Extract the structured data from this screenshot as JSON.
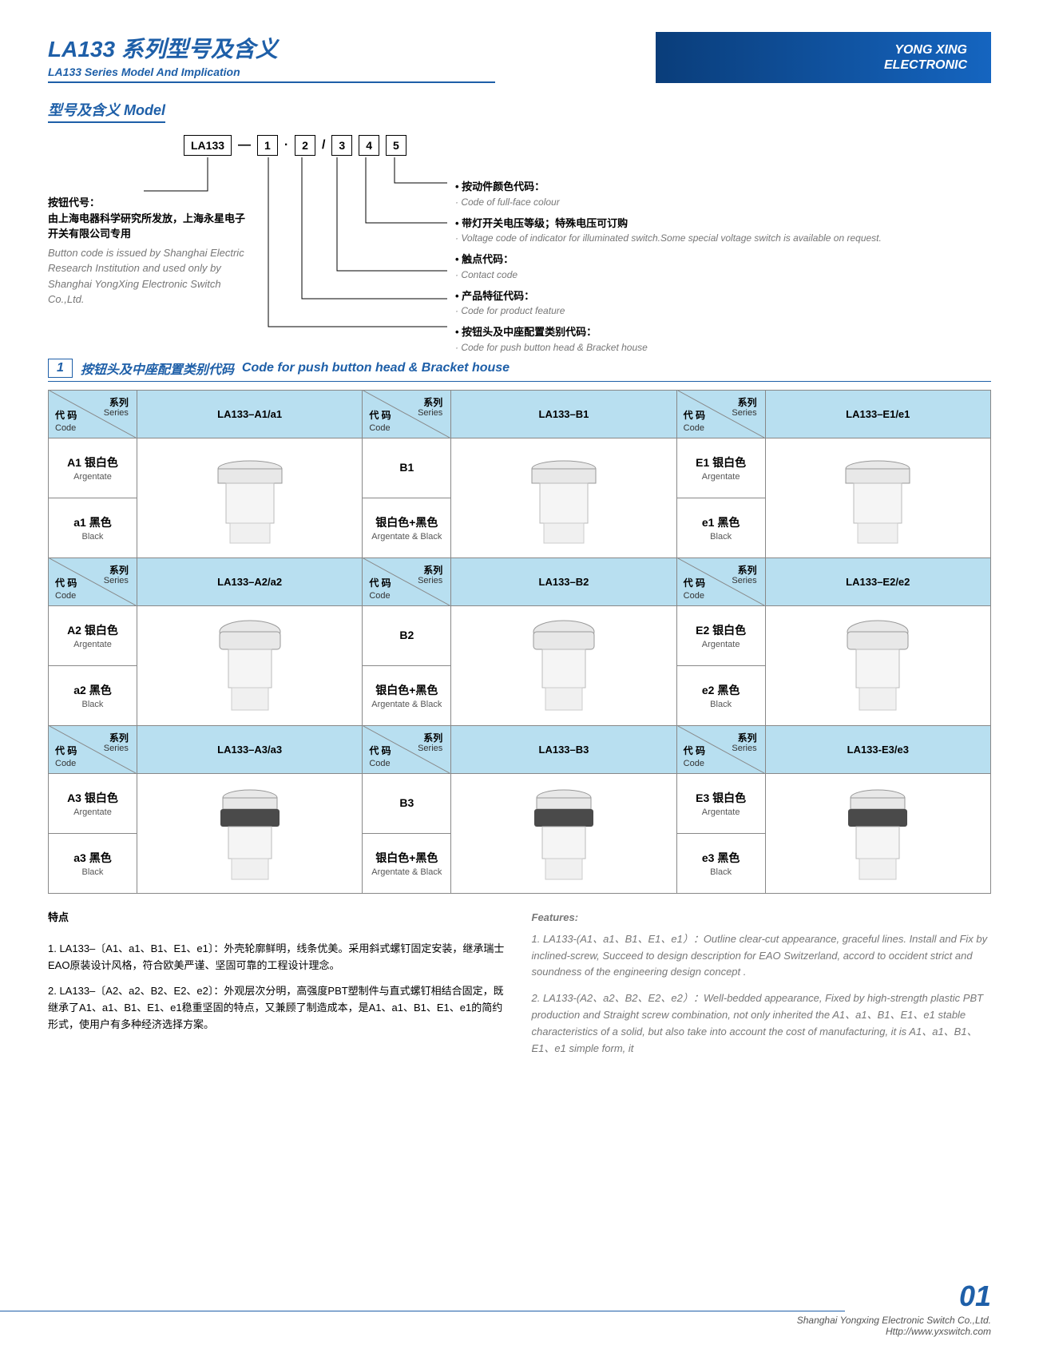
{
  "header": {
    "title_cn": "LA133 系列型号及含义",
    "title_en": "LA133 Series Model And Implication",
    "brand1": "YONG XING",
    "brand2": "ELECTRONIC"
  },
  "model": {
    "section_title": "型号及含义 Model",
    "base_code": "LA133",
    "pos1": "1",
    "pos2": "2",
    "pos3": "3",
    "pos4": "4",
    "pos5": "5",
    "left_cn1": "按钮代号：",
    "left_cn2": "由上海电器科学研究所发放，上海永星电子开关有限公司专用",
    "left_en": "Button code is issued by Shanghai Electric Research Institution and used only by Shanghai YongXing Electronic Switch Co.,Ltd.",
    "r1_cn": "• 按动件颜色代码：",
    "r1_en": "· Code of full-face colour",
    "r2_cn": "• 带灯开关电压等级；特殊电压可订购",
    "r2_en": "· Voltage code of indicator for illuminated switch.Some special voltage switch is available on request.",
    "r3_cn": "• 触点代码：",
    "r3_en": "· Contact code",
    "r4_cn": "• 产品特征代码：",
    "r4_en": "· Code for product feature",
    "r5_cn": "• 按钮头及中座配置类别代码：",
    "r5_en": "· Code for push button head & Bracket house"
  },
  "section1": {
    "num": "1",
    "title_cn": "按钮头及中座配置类别代码",
    "title_en": "Code for push button head & Bracket house"
  },
  "table_hdr": {
    "series_cn": "系列",
    "series_en": "Series",
    "code_cn": "代 码",
    "code_en": "Code"
  },
  "table": {
    "colors": {
      "hdr_bg": "#b8dff0",
      "border": "#888888",
      "button_body": "#e8e8e8",
      "button_shadow": "#c0c0c0",
      "button_dark": "#4a4a4a"
    },
    "rows": [
      {
        "models": [
          "LA133–A1/a1",
          "LA133–B1",
          "LA133–E1/e1"
        ],
        "variants": [
          [
            {
              "code": "A1 银白色",
              "en": "Argentate"
            },
            {
              "code": "a1 黑色",
              "en": "Black"
            }
          ],
          [
            {
              "code": "B1",
              "en": ""
            },
            {
              "code": "银白色+黑色",
              "en": "Argentate & Black"
            }
          ],
          [
            {
              "code": "E1 银白色",
              "en": "Argentate"
            },
            {
              "code": "e1 黑色",
              "en": "Black"
            }
          ]
        ]
      },
      {
        "models": [
          "LA133–A2/a2",
          "LA133–B2",
          "LA133–E2/e2"
        ],
        "variants": [
          [
            {
              "code": "A2 银白色",
              "en": "Argentate"
            },
            {
              "code": "a2 黑色",
              "en": "Black"
            }
          ],
          [
            {
              "code": "B2",
              "en": ""
            },
            {
              "code": "银白色+黑色",
              "en": "Argentate & Black"
            }
          ],
          [
            {
              "code": "E2 银白色",
              "en": "Argentate"
            },
            {
              "code": "e2 黑色",
              "en": "Black"
            }
          ]
        ]
      },
      {
        "models": [
          "LA133–A3/a3",
          "LA133–B3",
          "LA133-E3/e3"
        ],
        "variants": [
          [
            {
              "code": "A3 银白色",
              "en": "Argentate"
            },
            {
              "code": "a3 黑色",
              "en": "Black"
            }
          ],
          [
            {
              "code": "B3",
              "en": ""
            },
            {
              "code": "银白色+黑色",
              "en": "Argentate & Black"
            }
          ],
          [
            {
              "code": "E3 银白色",
              "en": "Argentate"
            },
            {
              "code": "e3 黑色",
              "en": "Black"
            }
          ]
        ]
      }
    ]
  },
  "features": {
    "hdr_cn": "特点",
    "hdr_en": "Features:",
    "cn1": "1. LA133–〔A1、a1、B1、E1、e1〕：外壳轮廓鲜明，线条优美。采用斜式螺钉固定安装，继承瑞士EAO原装设计风格，符合欧美严谨、坚固可靠的工程设计理念。",
    "cn2": "2. LA133–〔A2、a2、B2、E2、e2〕：外观层次分明，高强度PBT塑制件与直式螺钉相结合固定，既继承了A1、a1、B1、E1、e1稳重坚固的特点，又兼顾了制造成本，是A1、a1、B1、E1、e1的简约形式，使用户有多种经济选择方案。",
    "en1": "1. LA133-(A1、a1、B1、E1、e1）：Outline clear-cut appearance, graceful lines. Install and Fix by inclined-screw, Succeed to design description for EAO Switzerland, accord to occident strict and soundness of the engineering design concept .",
    "en2": "2. LA133-(A2、a2、B2、E2、e2）：Well-bedded appearance, Fixed by high-strength plastic PBT production and Straight screw combination, not only inherited the A1、a1、B1、E1、e1 stable characteristics of a solid, but also take into account the cost of manufacturing, it is A1、a1、B1、E1、e1 simple form, it"
  },
  "page_num": "01",
  "footer": {
    "company": "Shanghai Yongxing Electronic Switch Co.,Ltd.",
    "url": "Http://www.yxswitch.com"
  }
}
